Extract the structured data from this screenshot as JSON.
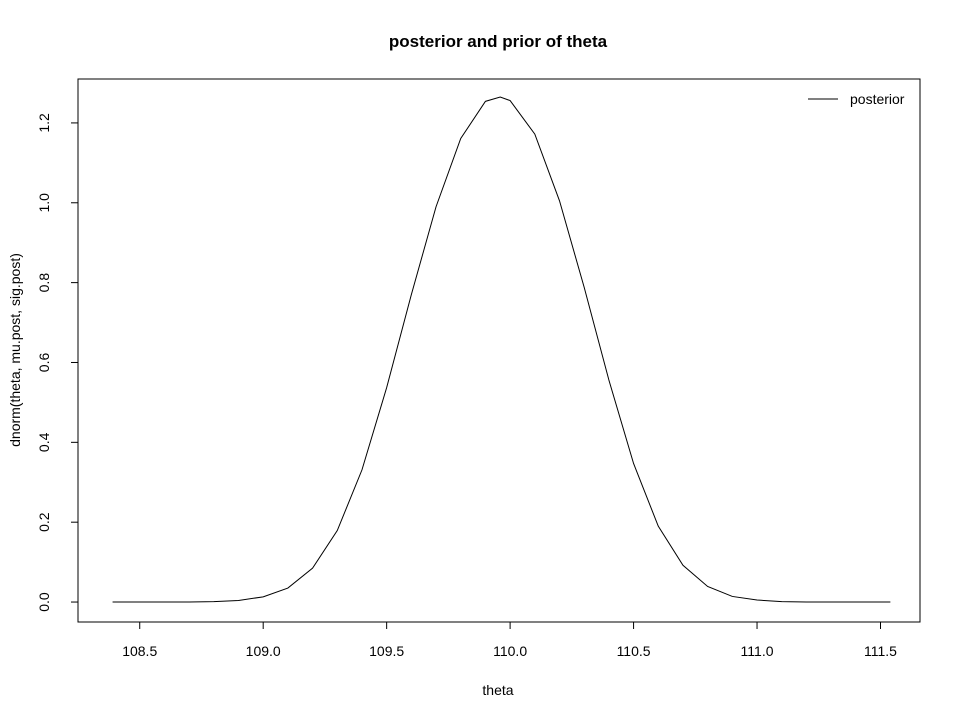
{
  "chart_data": {
    "type": "line",
    "title": "posterior and prior of theta",
    "xlabel": "theta",
    "ylabel": "dnorm(theta, mu.post, sig.post)",
    "xlim": [
      108.25,
      111.66
    ],
    "ylim": [
      -0.05,
      1.31
    ],
    "xticks": [
      108.5,
      109.0,
      109.5,
      110.0,
      110.5,
      111.0,
      111.5
    ],
    "xtick_labels": [
      "108.5",
      "109.0",
      "109.5",
      "110.0",
      "110.5",
      "111.0",
      "111.5"
    ],
    "yticks": [
      0.0,
      0.2,
      0.4,
      0.6,
      0.8,
      1.0,
      1.2
    ],
    "ytick_labels": [
      "0.0",
      "0.2",
      "0.4",
      "0.6",
      "0.8",
      "1.0",
      "1.2"
    ],
    "grid": false,
    "legend": {
      "position": "top-right",
      "entries": [
        "posterior"
      ]
    },
    "series": [
      {
        "name": "posterior",
        "color": "#000000",
        "x": [
          108.39,
          108.5,
          108.6,
          108.7,
          108.8,
          108.9,
          109.0,
          109.1,
          109.2,
          109.3,
          109.4,
          109.5,
          109.6,
          109.7,
          109.8,
          109.9,
          109.96,
          110.0,
          110.1,
          110.2,
          110.3,
          110.4,
          110.5,
          110.6,
          110.7,
          110.8,
          110.9,
          111.0,
          111.1,
          111.2,
          111.3,
          111.4,
          111.54
        ],
        "y": [
          0.0,
          0.0,
          0.0,
          0.0,
          0.001,
          0.004,
          0.013,
          0.035,
          0.085,
          0.179,
          0.331,
          0.537,
          0.77,
          0.99,
          1.161,
          1.254,
          1.265,
          1.256,
          1.172,
          1.005,
          0.788,
          0.556,
          0.347,
          0.19,
          0.092,
          0.039,
          0.014,
          0.005,
          0.001,
          0.0,
          0.0,
          0.0,
          0.0
        ]
      }
    ]
  }
}
